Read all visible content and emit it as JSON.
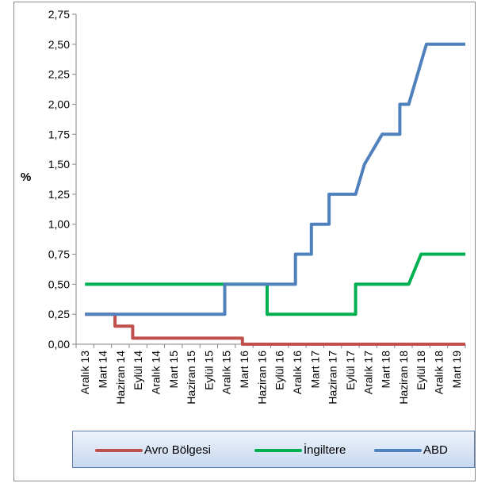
{
  "chart_data": {
    "type": "line",
    "step": true,
    "ylabel": "%",
    "xlabel": "",
    "ylim": [
      0,
      2.75
    ],
    "yticks": [
      "0,00",
      "0,25",
      "0,50",
      "0,75",
      "1,00",
      "1,25",
      "1,50",
      "1,75",
      "2,00",
      "2,25",
      "2,50",
      "2,75"
    ],
    "categories": [
      "Aralık 13",
      "Mart 14",
      "Haziran 14",
      "Eylül 14",
      "Aralık 14",
      "Mart 15",
      "Haziran 15",
      "Eylül 15",
      "Aralık 15",
      "Mart 16",
      "Haziran 16",
      "Eylül 16",
      "Aralık 16",
      "Mart 17",
      "Haziran 17",
      "Eylül 17",
      "Aralık 17",
      "Mart 18",
      "Haziran 18",
      "Eylül 18",
      "Aralık 18",
      "Mart 19"
    ],
    "grid": false,
    "legend_position": "bottom",
    "series": [
      {
        "name": "Avro Bölgesi",
        "color": "#c0504d",
        "points": [
          [
            0,
            0.25
          ],
          [
            1.7,
            0.25
          ],
          [
            1.7,
            0.15
          ],
          [
            2.7,
            0.15
          ],
          [
            2.7,
            0.05
          ],
          [
            8.9,
            0.05
          ],
          [
            8.9,
            0.0
          ],
          [
            21.5,
            0.0
          ]
        ]
      },
      {
        "name": "İngiltere",
        "color": "#00b050",
        "points": [
          [
            0,
            0.5
          ],
          [
            10.3,
            0.5
          ],
          [
            10.3,
            0.25
          ],
          [
            15.3,
            0.25
          ],
          [
            15.3,
            0.5
          ],
          [
            18.3,
            0.5
          ],
          [
            19.0,
            0.75
          ],
          [
            21.5,
            0.75
          ]
        ]
      },
      {
        "name": "ABD",
        "color": "#4f81bd",
        "points": [
          [
            0,
            0.25
          ],
          [
            7.9,
            0.25
          ],
          [
            7.9,
            0.5
          ],
          [
            11.9,
            0.5
          ],
          [
            11.9,
            0.75
          ],
          [
            12.8,
            0.75
          ],
          [
            12.8,
            1.0
          ],
          [
            13.8,
            1.0
          ],
          [
            13.8,
            1.25
          ],
          [
            15.3,
            1.25
          ],
          [
            15.8,
            1.5
          ],
          [
            16.8,
            1.75
          ],
          [
            17.8,
            1.75
          ],
          [
            17.8,
            2.0
          ],
          [
            18.3,
            2.0
          ],
          [
            19.3,
            2.5
          ],
          [
            21.5,
            2.5
          ]
        ]
      }
    ]
  },
  "legend": {
    "items": [
      "Avro Bölgesi",
      "İngiltere",
      "ABD"
    ]
  }
}
